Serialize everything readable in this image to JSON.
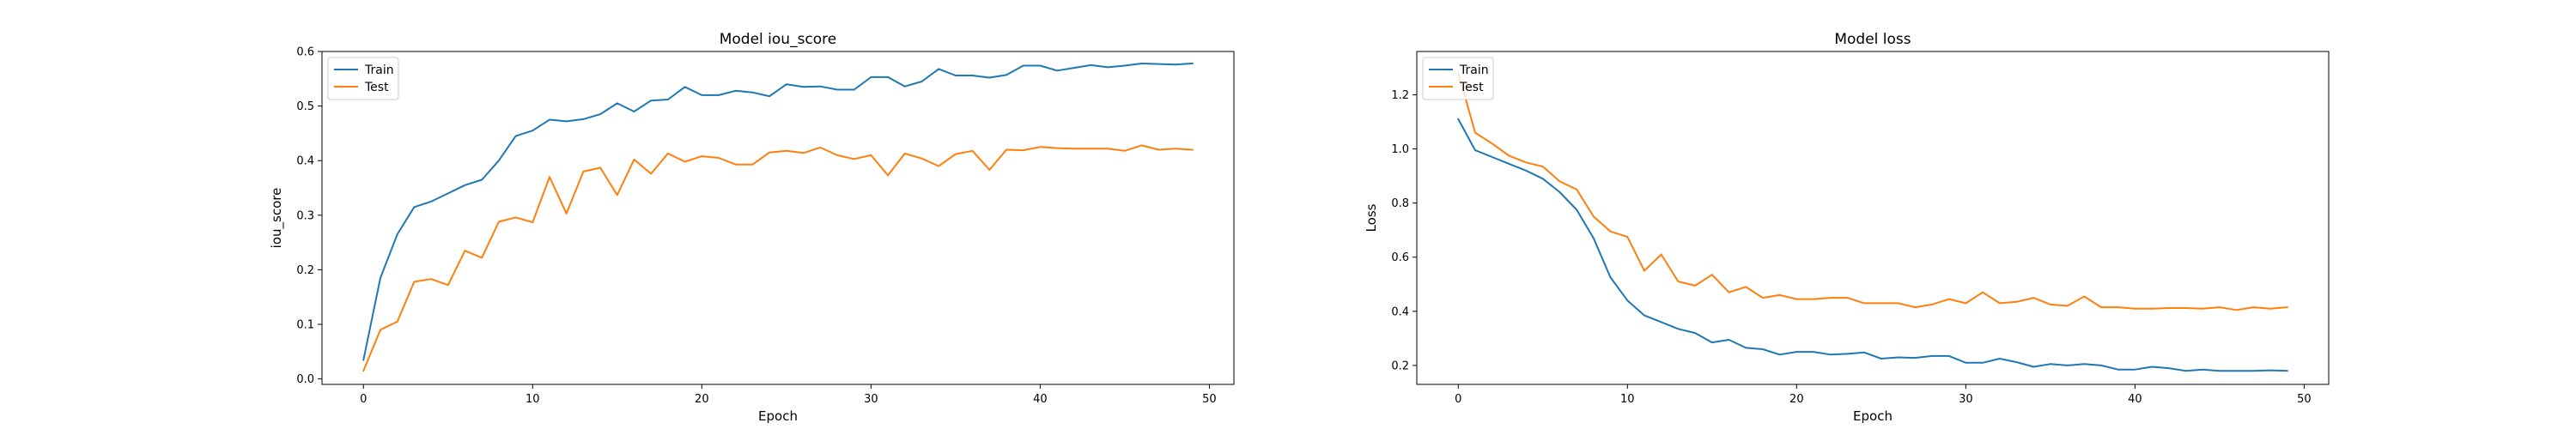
{
  "chart_data": [
    {
      "type": "line",
      "title": "Model iou_score",
      "xlabel": "Epoch",
      "ylabel": "iou_score",
      "xlim": [
        -2.45,
        51.45
      ],
      "ylim": [
        -0.01,
        0.6
      ],
      "xticks": [
        0,
        10,
        20,
        30,
        40,
        50
      ],
      "yticks": [
        0.0,
        0.1,
        0.2,
        0.3,
        0.4,
        0.5,
        0.6
      ],
      "ytick_labels": [
        "0.0",
        "0.1",
        "0.2",
        "0.3",
        "0.4",
        "0.5",
        "0.6"
      ],
      "grid": false,
      "legend": "upper-left",
      "x": [
        0,
        1,
        2,
        3,
        4,
        5,
        6,
        7,
        8,
        9,
        10,
        11,
        12,
        13,
        14,
        15,
        16,
        17,
        18,
        19,
        20,
        21,
        22,
        23,
        24,
        25,
        26,
        27,
        28,
        29,
        30,
        31,
        32,
        33,
        34,
        35,
        36,
        37,
        38,
        39,
        40,
        41,
        42,
        43,
        44,
        45,
        46,
        47,
        48,
        49
      ],
      "series": [
        {
          "name": "Train",
          "color": "#1f77b4",
          "values": [
            0.035,
            0.185,
            0.265,
            0.315,
            0.325,
            0.34,
            0.355,
            0.365,
            0.4,
            0.445,
            0.455,
            0.475,
            0.472,
            0.476,
            0.485,
            0.505,
            0.49,
            0.51,
            0.512,
            0.535,
            0.52,
            0.52,
            0.528,
            0.525,
            0.518,
            0.54,
            0.535,
            0.536,
            0.53,
            0.53,
            0.553,
            0.553,
            0.536,
            0.545,
            0.568,
            0.556,
            0.556,
            0.552,
            0.557,
            0.574,
            0.574,
            0.565,
            0.57,
            0.575,
            0.571,
            0.574,
            0.578,
            0.577,
            0.576,
            0.578
          ]
        },
        {
          "name": "Test",
          "color": "#ff7f0e",
          "values": [
            0.015,
            0.09,
            0.105,
            0.178,
            0.183,
            0.172,
            0.235,
            0.222,
            0.288,
            0.296,
            0.287,
            0.37,
            0.303,
            0.38,
            0.387,
            0.337,
            0.402,
            0.376,
            0.413,
            0.398,
            0.408,
            0.405,
            0.393,
            0.393,
            0.415,
            0.418,
            0.414,
            0.424,
            0.41,
            0.403,
            0.41,
            0.373,
            0.413,
            0.404,
            0.39,
            0.412,
            0.418,
            0.383,
            0.42,
            0.419,
            0.425,
            0.423,
            0.422,
            0.422,
            0.422,
            0.418,
            0.428,
            0.42,
            0.422,
            0.42
          ]
        }
      ]
    },
    {
      "type": "line",
      "title": "Model loss",
      "xlabel": "Epoch",
      "ylabel": "Loss",
      "xlim": [
        -2.45,
        51.45
      ],
      "ylim": [
        0.13,
        1.36
      ],
      "xticks": [
        0,
        10,
        20,
        30,
        40,
        50
      ],
      "yticks": [
        0.2,
        0.4,
        0.6,
        0.8,
        1.0,
        1.2
      ],
      "ytick_labels": [
        "0.2",
        "0.4",
        "0.6",
        "0.8",
        "1.0",
        "1.2"
      ],
      "grid": false,
      "legend": "upper-left",
      "x": [
        0,
        1,
        2,
        3,
        4,
        5,
        6,
        7,
        8,
        9,
        10,
        11,
        12,
        13,
        14,
        15,
        16,
        17,
        18,
        19,
        20,
        21,
        22,
        23,
        24,
        25,
        26,
        27,
        28,
        29,
        30,
        31,
        32,
        33,
        34,
        35,
        36,
        37,
        38,
        39,
        40,
        41,
        42,
        43,
        44,
        45,
        46,
        47,
        48,
        49
      ],
      "series": [
        {
          "name": "Train",
          "color": "#1f77b4",
          "values": [
            1.11,
            0.995,
            0.97,
            0.945,
            0.92,
            0.89,
            0.84,
            0.775,
            0.67,
            0.525,
            0.44,
            0.385,
            0.36,
            0.335,
            0.32,
            0.285,
            0.295,
            0.265,
            0.26,
            0.24,
            0.25,
            0.25,
            0.24,
            0.243,
            0.248,
            0.225,
            0.23,
            0.228,
            0.235,
            0.235,
            0.21,
            0.21,
            0.225,
            0.212,
            0.195,
            0.205,
            0.2,
            0.205,
            0.2,
            0.185,
            0.185,
            0.195,
            0.19,
            0.18,
            0.185,
            0.18,
            0.18,
            0.18,
            0.182,
            0.18
          ]
        },
        {
          "name": "Test",
          "color": "#ff7f0e",
          "values": [
            1.28,
            1.06,
            1.02,
            0.975,
            0.95,
            0.935,
            0.88,
            0.85,
            0.75,
            0.695,
            0.675,
            0.55,
            0.61,
            0.51,
            0.495,
            0.535,
            0.47,
            0.49,
            0.45,
            0.46,
            0.445,
            0.445,
            0.45,
            0.45,
            0.43,
            0.43,
            0.43,
            0.415,
            0.425,
            0.445,
            0.43,
            0.47,
            0.43,
            0.435,
            0.45,
            0.425,
            0.42,
            0.455,
            0.415,
            0.415,
            0.41,
            0.41,
            0.412,
            0.412,
            0.41,
            0.415,
            0.405,
            0.415,
            0.41,
            0.415
          ]
        }
      ]
    }
  ]
}
